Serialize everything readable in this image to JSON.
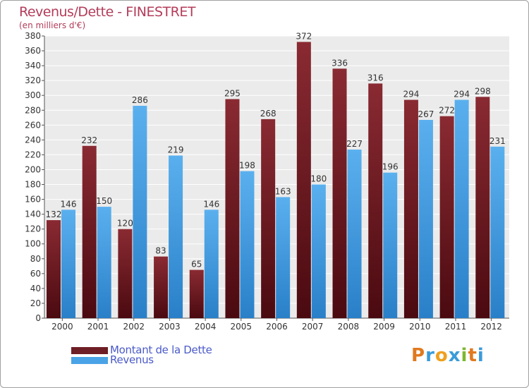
{
  "chart_data": {
    "type": "bar",
    "title": "Revenus/Dette - FINESTRET",
    "subtitle": "(en milliers d'€)",
    "categories": [
      "2000",
      "2001",
      "2002",
      "2003",
      "2004",
      "2005",
      "2006",
      "2007",
      "2008",
      "2009",
      "2010",
      "2011",
      "2012"
    ],
    "series": [
      {
        "name": "Montant de la Dette",
        "color": "#6e1e25",
        "values": [
          132,
          232,
          120,
          83,
          65,
          295,
          268,
          372,
          336,
          316,
          294,
          272,
          298
        ]
      },
      {
        "name": "Revenus",
        "color": "#4aa3e6",
        "values": [
          146,
          150,
          286,
          219,
          146,
          198,
          163,
          180,
          227,
          196,
          267,
          294,
          231
        ]
      }
    ],
    "ylim": [
      0,
      380
    ],
    "ytick_step": 20,
    "grid": true,
    "legend_position": "bottom-left"
  },
  "logo": {
    "letters": [
      "P",
      "r",
      "o",
      "x",
      "i",
      "t",
      "i"
    ],
    "colors": [
      "#e07a1f",
      "#3a9bd9",
      "#f0a01e",
      "#3a9bd9",
      "#7cb82f",
      "#e07a1f",
      "#3a9bd9"
    ]
  }
}
